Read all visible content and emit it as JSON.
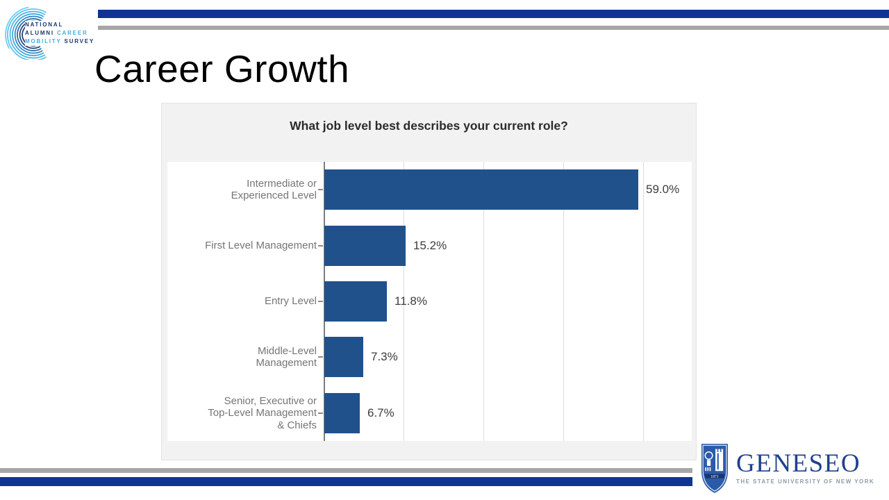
{
  "slide": {
    "title": "Career Growth"
  },
  "nacm_logo": {
    "line1": "NATIONAL",
    "line2_dark": "ALUMNI ",
    "line2_light": "CAREER",
    "line3_light": "MOBILITY ",
    "line3_dark": "SURVEY"
  },
  "chart_data": {
    "type": "bar",
    "orientation": "horizontal",
    "title": "What job level best describes your current role?",
    "categories": [
      [
        "Intermediate or",
        "Experienced Level"
      ],
      [
        "First Level Management"
      ],
      [
        "Entry Level"
      ],
      [
        "Middle-Level",
        "Management"
      ],
      [
        "Senior, Executive or",
        "Top-Level Management",
        "& Chiefs"
      ]
    ],
    "values": [
      59.0,
      15.2,
      11.8,
      7.3,
      6.7
    ],
    "value_labels": [
      "59.0%",
      "15.2%",
      "11.8%",
      "7.3%",
      "6.7%"
    ],
    "unit": "%",
    "axis_range": [
      0,
      60
    ],
    "gridline_step": 15,
    "grid": true,
    "legend": "none",
    "bar_color": "#20518b"
  },
  "geneseo_logo": {
    "wordmark": "GENESEO",
    "tagline": "THE STATE UNIVERSITY OF NEW YORK",
    "shield_year": "1871"
  },
  "colors": {
    "rule_navy": "#0d3692",
    "rule_gray": "#a6a6a6",
    "chart_panel_bg": "#f2f2f2",
    "chart_bar": "#20518b",
    "chart_label_gray": "#757575",
    "nacm_navy": "#1c3667",
    "nacm_light_blue": "#3fafe0",
    "geneseo_blue": "#1e418f",
    "geneseo_shield_blue": "#2b5ba8"
  }
}
